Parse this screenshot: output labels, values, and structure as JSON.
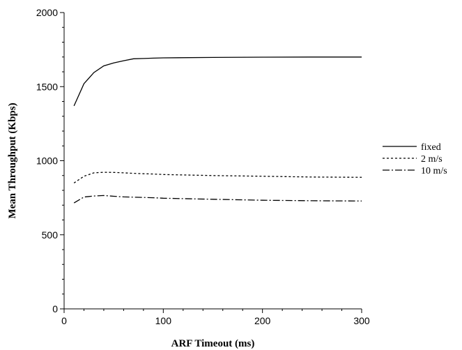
{
  "chart_data": {
    "type": "line",
    "title": "",
    "xlabel": "ARF Timeout (ms)",
    "ylabel": "Mean Throughput (Kbps)",
    "xlim": [
      0,
      300
    ],
    "ylim": [
      0,
      2000
    ],
    "x_ticks": [
      0,
      100,
      200,
      300
    ],
    "y_ticks": [
      0,
      500,
      1000,
      1500,
      2000
    ],
    "grid": false,
    "legend_position": "right",
    "series": [
      {
        "name": "fixed",
        "style": "solid",
        "x": [
          10,
          20,
          30,
          40,
          50,
          60,
          70,
          80,
          90,
          100,
          150,
          200,
          250,
          300
        ],
        "y": [
          1370,
          1520,
          1595,
          1640,
          1660,
          1675,
          1688,
          1690,
          1692,
          1694,
          1697,
          1699,
          1700,
          1700
        ]
      },
      {
        "name": "2 m/s",
        "style": "dotted",
        "x": [
          10,
          20,
          30,
          40,
          50,
          60,
          70,
          80,
          90,
          100,
          150,
          200,
          250,
          300
        ],
        "y": [
          850,
          895,
          918,
          922,
          921,
          918,
          915,
          912,
          910,
          907,
          900,
          895,
          890,
          888
        ]
      },
      {
        "name": "10 m/s",
        "style": "dashdot",
        "x": [
          10,
          20,
          30,
          40,
          50,
          60,
          70,
          80,
          90,
          100,
          150,
          200,
          250,
          300
        ],
        "y": [
          715,
          755,
          762,
          765,
          760,
          756,
          754,
          752,
          750,
          747,
          740,
          733,
          730,
          728
        ]
      }
    ]
  }
}
